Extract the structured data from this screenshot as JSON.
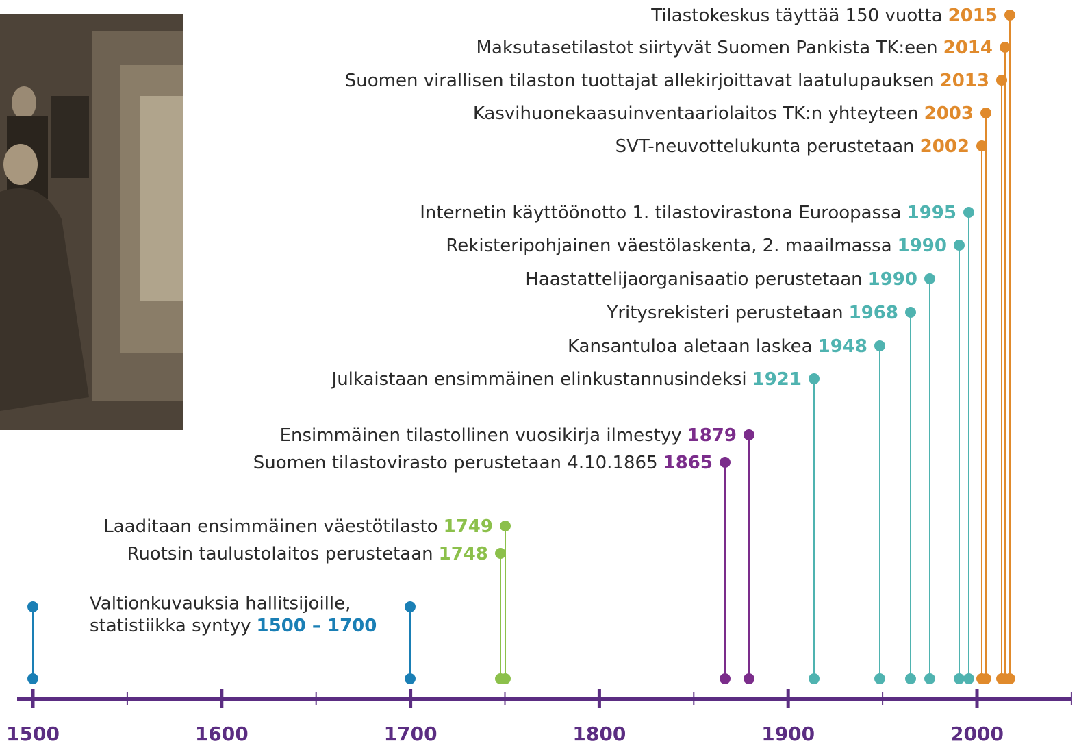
{
  "axis": {
    "ticks": [
      "1500",
      "1600",
      "1700",
      "1800",
      "1900",
      "2000"
    ]
  },
  "events": [
    {
      "text": "Tilastokeskus täyttää 150 vuotta",
      "year": "2015"
    },
    {
      "text": "Maksutasetilastot siirtyvät Suomen Pankista TK:een",
      "year": "2014"
    },
    {
      "text": "Suomen virallisen tilaston tuottajat allekirjoittavat laatulupauksen",
      "year": "2013"
    },
    {
      "text": "Kasvihuonekaasuinventaariolaitos TK:n yhteyteen",
      "year": "2003"
    },
    {
      "text": "SVT-neuvottelukunta perustetaan",
      "year": "2002"
    },
    {
      "text": "Internetin käyttöönotto 1. tilastovirastona Euroopassa",
      "year": "1995"
    },
    {
      "text": "Rekisteripohjainen väestölaskenta, 2. maailmassa",
      "year": "1990"
    },
    {
      "text": "Haastattelijaorganisaatio perustetaan",
      "year": "1990"
    },
    {
      "text": "Yritysrekisteri perustetaan",
      "year": "1968"
    },
    {
      "text": "Kansantuloa aletaan laskea",
      "year": "1948"
    },
    {
      "text": "Julkaistaan ensimmäinen elinkustannusindeksi",
      "year": "1921"
    },
    {
      "text": "Ensimmäinen tilastollinen vuosikirja ilmestyy",
      "year": "1879"
    },
    {
      "text": "Suomen tilastovirasto perustetaan 4.10.1865",
      "year": "1865"
    },
    {
      "text": "Laaditaan ensimmäinen väestötilasto",
      "year": "1749"
    },
    {
      "text": "Ruotsin taulustolaitos perustetaan",
      "year": "1748"
    }
  ],
  "first_event": {
    "lines": [
      "Valtionkuvauksia hallitsijoille,",
      "statistiikka syntyy"
    ],
    "year": "1500 – 1700"
  }
}
